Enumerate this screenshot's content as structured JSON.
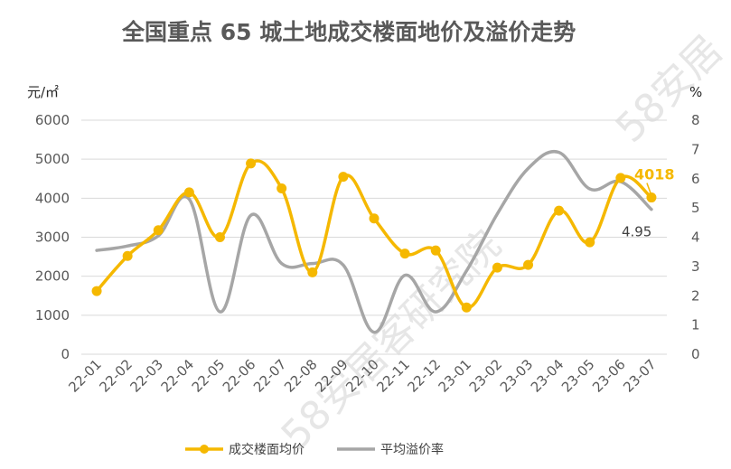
{
  "chart_data": {
    "type": "line",
    "title": "全国重点 65 城土地成交楼面地价及溢价走势",
    "y_left_unit": "元/㎡",
    "y_right_unit": "%",
    "ylim_left": [
      0,
      6000
    ],
    "ylim_right": [
      0,
      8
    ],
    "y_left_ticks": [
      "0",
      "1000",
      "2000",
      "3000",
      "4000",
      "5000",
      "6000"
    ],
    "y_right_ticks": [
      "0",
      "1",
      "2",
      "3",
      "4",
      "5",
      "6",
      "7",
      "8"
    ],
    "categories": [
      "22-01",
      "22-02",
      "22-03",
      "22-04",
      "22-05",
      "22-06",
      "22-07",
      "22-08",
      "22-09",
      "22-10",
      "22-11",
      "22-12",
      "23-01",
      "23-02",
      "23-03",
      "23-04",
      "23-05",
      "23-06",
      "23-07"
    ],
    "grid": true,
    "legend_position": "bottom",
    "series": [
      {
        "name": "成交楼面均价",
        "axis": "left",
        "color": "#f5b800",
        "marker": "circle",
        "smooth": true,
        "values": [
          1620,
          2520,
          3180,
          4150,
          3000,
          4890,
          4250,
          2100,
          4550,
          3480,
          2580,
          2660,
          1200,
          2220,
          2290,
          3680,
          2870,
          4520,
          4018
        ]
      },
      {
        "name": "平均溢价率",
        "axis": "right",
        "color": "#a6a6a6",
        "marker": "none",
        "smooth": true,
        "values": [
          3.55,
          3.7,
          4.05,
          5.3,
          1.45,
          4.75,
          3.1,
          3.1,
          3.05,
          0.75,
          2.7,
          1.45,
          2.85,
          4.8,
          6.35,
          6.9,
          5.65,
          5.9,
          4.95
        ]
      }
    ],
    "annotations": [
      {
        "text": "4018",
        "series": 0,
        "index": 18,
        "color": "#f5b800"
      },
      {
        "text": "4.95",
        "series": 1,
        "index": 18,
        "color": "#404040"
      }
    ]
  },
  "watermark": {
    "texts": [
      "58安居客研究院",
      "58安居"
    ],
    "color": "#e6e6e6"
  }
}
